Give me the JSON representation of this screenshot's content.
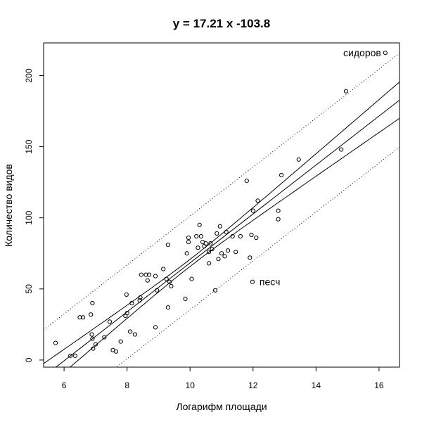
{
  "chart_data": {
    "type": "scatter",
    "title": "y =  17.21 x   -103.8",
    "xlabel": "Логарифм площади",
    "ylabel": "Количество видов",
    "xlim": [
      5.35,
      16.65
    ],
    "ylim": [
      -5,
      223
    ],
    "x_ticks": [
      6,
      8,
      10,
      12,
      14,
      16
    ],
    "y_ticks": [
      0,
      50,
      100,
      150,
      200
    ],
    "grid": false,
    "legend": "none",
    "colors": {
      "points": "#000000",
      "lines": "#000000",
      "background": "#ffffff"
    },
    "points": [
      [
        5.73,
        12
      ],
      [
        6.2,
        3
      ],
      [
        6.35,
        3
      ],
      [
        6.5,
        30
      ],
      [
        6.6,
        30
      ],
      [
        6.85,
        32
      ],
      [
        6.9,
        40
      ],
      [
        6.88,
        18
      ],
      [
        6.9,
        15
      ],
      [
        6.92,
        8
      ],
      [
        7.0,
        11
      ],
      [
        7.28,
        16
      ],
      [
        7.45,
        27
      ],
      [
        7.55,
        7
      ],
      [
        7.65,
        6
      ],
      [
        7.8,
        13
      ],
      [
        7.95,
        31
      ],
      [
        8.0,
        33
      ],
      [
        7.98,
        46
      ],
      [
        8.1,
        20
      ],
      [
        8.15,
        40
      ],
      [
        8.25,
        18
      ],
      [
        8.4,
        42
      ],
      [
        8.42,
        44
      ],
      [
        8.45,
        60
      ],
      [
        8.6,
        60
      ],
      [
        8.65,
        56
      ],
      [
        8.7,
        60
      ],
      [
        8.9,
        59
      ],
      [
        8.9,
        23
      ],
      [
        8.95,
        49
      ],
      [
        9.15,
        64
      ],
      [
        9.25,
        57
      ],
      [
        9.3,
        81
      ],
      [
        9.3,
        37
      ],
      [
        9.35,
        55
      ],
      [
        9.4,
        52
      ],
      [
        9.85,
        43
      ],
      [
        9.9,
        75
      ],
      [
        9.95,
        83
      ],
      [
        9.95,
        86
      ],
      [
        10.05,
        57
      ],
      [
        10.2,
        87
      ],
      [
        10.25,
        79
      ],
      [
        10.3,
        95
      ],
      [
        10.35,
        87
      ],
      [
        10.4,
        83
      ],
      [
        10.45,
        80
      ],
      [
        10.5,
        82
      ],
      [
        10.6,
        68
      ],
      [
        10.6,
        76
      ],
      [
        10.65,
        82
      ],
      [
        10.7,
        78
      ],
      [
        10.8,
        49
      ],
      [
        10.85,
        89
      ],
      [
        10.9,
        71
      ],
      [
        10.95,
        94
      ],
      [
        11.0,
        75
      ],
      [
        11.1,
        73
      ],
      [
        11.15,
        90
      ],
      [
        11.2,
        77
      ],
      [
        11.35,
        87
      ],
      [
        11.45,
        76
      ],
      [
        11.6,
        87
      ],
      [
        11.8,
        126
      ],
      [
        11.9,
        72
      ],
      [
        11.95,
        88
      ],
      [
        12.0,
        105
      ],
      [
        12.1,
        86
      ],
      [
        12.15,
        112
      ],
      [
        12.8,
        99
      ],
      [
        12.8,
        105
      ],
      [
        12.9,
        130
      ],
      [
        13.45,
        141
      ],
      [
        14.8,
        148
      ],
      [
        14.95,
        189
      ],
      [
        16.2,
        216
      ],
      [
        11.98,
        55
      ]
    ],
    "fit_line": {
      "slope": 17.21,
      "intercept": -103.8
    },
    "confidence_band": {
      "center_x": 10.05,
      "half_width_at_center": 2.5,
      "half_width_at_16_5": 12.5
    },
    "prediction_band": {
      "offset": 33
    },
    "annotations": [
      {
        "text": "сидоров",
        "x": 16.2,
        "y": 216
      },
      {
        "text": "песч",
        "x": 11.98,
        "y": 55
      }
    ]
  }
}
